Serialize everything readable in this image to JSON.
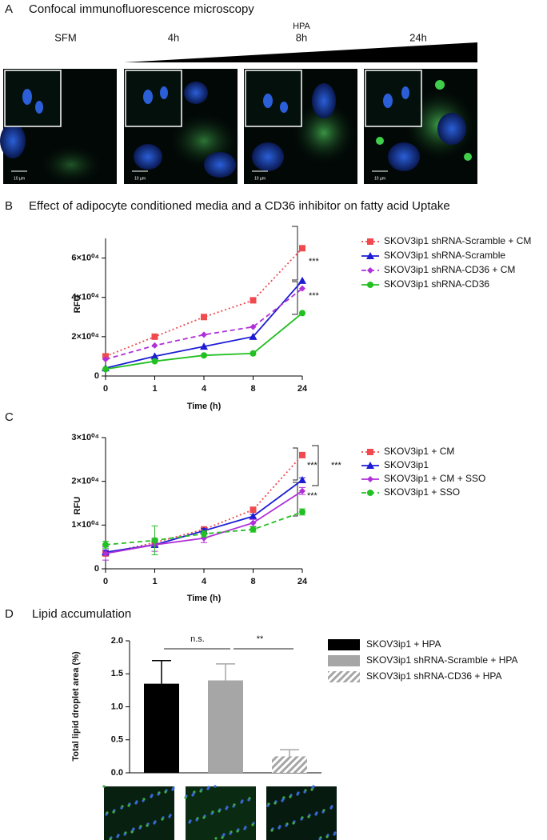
{
  "panel_a": {
    "letter": "A",
    "title": "Confocal immunofluorescence microscopy",
    "treatment": "HPA",
    "groups": [
      "SFM",
      "4h",
      "8h",
      "24h"
    ],
    "scale_bar": "10 µm"
  },
  "chart_data": [
    {
      "type": "line",
      "letter": "B",
      "title": "Effect of adipocyte conditioned media and a CD36 inhibitor on fatty acid Uptake",
      "xlabel": "Time (h)",
      "ylabel": "RFU",
      "categories": [
        "0",
        "1",
        "4",
        "8",
        "24"
      ],
      "ylim": [
        0,
        70000
      ],
      "yticks": [
        0,
        {
          "value": 20000,
          "label": "2×10⁰⁴"
        },
        {
          "value": 40000,
          "label": "4×10⁰⁴"
        },
        {
          "value": 60000,
          "label": "6×10⁰⁴"
        }
      ],
      "series": [
        {
          "name": "SKOV3ip1 shRNA-Scramble + CM",
          "color": "#f04a4f",
          "style": "dotted",
          "marker": "square",
          "values": [
            10000,
            20000,
            30000,
            38500,
            65000
          ]
        },
        {
          "name": "SKOV3ip1 shRNA-Scramble",
          "color": "#1c1cd4",
          "style": "solid",
          "marker": "triangle",
          "values": [
            4000,
            10000,
            15000,
            20000,
            48500
          ]
        },
        {
          "name": "SKOV3ip1 shRNA-CD36 + CM",
          "color": "#b030d8",
          "style": "dashed",
          "marker": "diamond",
          "values": [
            8500,
            15500,
            21000,
            25000,
            44500
          ]
        },
        {
          "name": "SKOV3ip1 shRNA-CD36",
          "color": "#22c022",
          "style": "solid",
          "marker": "circle",
          "values": [
            3500,
            7500,
            10500,
            11500,
            32000
          ]
        }
      ],
      "annotations": [
        "***",
        "***"
      ]
    },
    {
      "type": "line",
      "letter": "C",
      "xlabel": "Time (h)",
      "ylabel": "RFU",
      "categories": [
        "0",
        "1",
        "4",
        "8",
        "24"
      ],
      "ylim": [
        0,
        30000
      ],
      "yticks": [
        0,
        {
          "value": 10000,
          "label": "1×10⁰⁴"
        },
        {
          "value": 20000,
          "label": "2×10⁰⁴"
        },
        {
          "value": 30000,
          "label": "3×10⁰⁴"
        }
      ],
      "series": [
        {
          "name": "SKOV3ip1 + CM",
          "color": "#f04a4f",
          "style": "dotted",
          "marker": "square",
          "values": [
            3500,
            6000,
            9000,
            13500,
            26000
          ],
          "errors": [
            500,
            700,
            500,
            400,
            500
          ]
        },
        {
          "name": "SKOV3ip1",
          "color": "#1c1cd4",
          "style": "solid",
          "marker": "triangle",
          "values": [
            3800,
            5500,
            8700,
            12000,
            20300
          ],
          "errors": [
            500,
            600,
            500,
            400,
            500
          ]
        },
        {
          "name": "SKOV3ip1 + CM + SSO",
          "color": "#b030d8",
          "style": "solid",
          "marker": "diamond",
          "values": [
            3500,
            5500,
            7000,
            10500,
            17800
          ],
          "errors": [
            1500,
            1500,
            1000,
            800,
            800
          ]
        },
        {
          "name": "SKOV3ip1 + SSO",
          "color": "#22c022",
          "style": "dashed",
          "marker": "circle",
          "values": [
            5500,
            6500,
            8000,
            9000,
            13000
          ],
          "errors": [
            800,
            3300,
            700,
            600,
            700
          ]
        }
      ],
      "annotations": [
        "***",
        "***",
        "***"
      ]
    },
    {
      "type": "bar",
      "letter": "D",
      "title": "Lipid accumulation",
      "ylabel": "Total lipid droplet area (%)",
      "categories": [
        "SKOV3ip1 + HPA",
        "SKOV3ip1 shRNA-Scramble + HPA",
        "SKOV3ip1 shRNA-CD36 + HPA"
      ],
      "values": [
        1.35,
        1.4,
        0.25
      ],
      "errors": [
        0.35,
        0.25,
        0.1
      ],
      "colors": [
        "#000000",
        "#a6a6a6",
        "#a6a6a6"
      ],
      "hatch": [
        false,
        false,
        true
      ],
      "ylim": [
        0,
        2.0
      ],
      "yticks": [
        {
          "value": 0,
          "label": "0.0"
        },
        0.5,
        {
          "value": 1.0,
          "label": "1.0"
        },
        1.5,
        {
          "value": 2.0,
          "label": "2.0"
        }
      ],
      "annotations": [
        "n.s.",
        "**"
      ]
    }
  ]
}
